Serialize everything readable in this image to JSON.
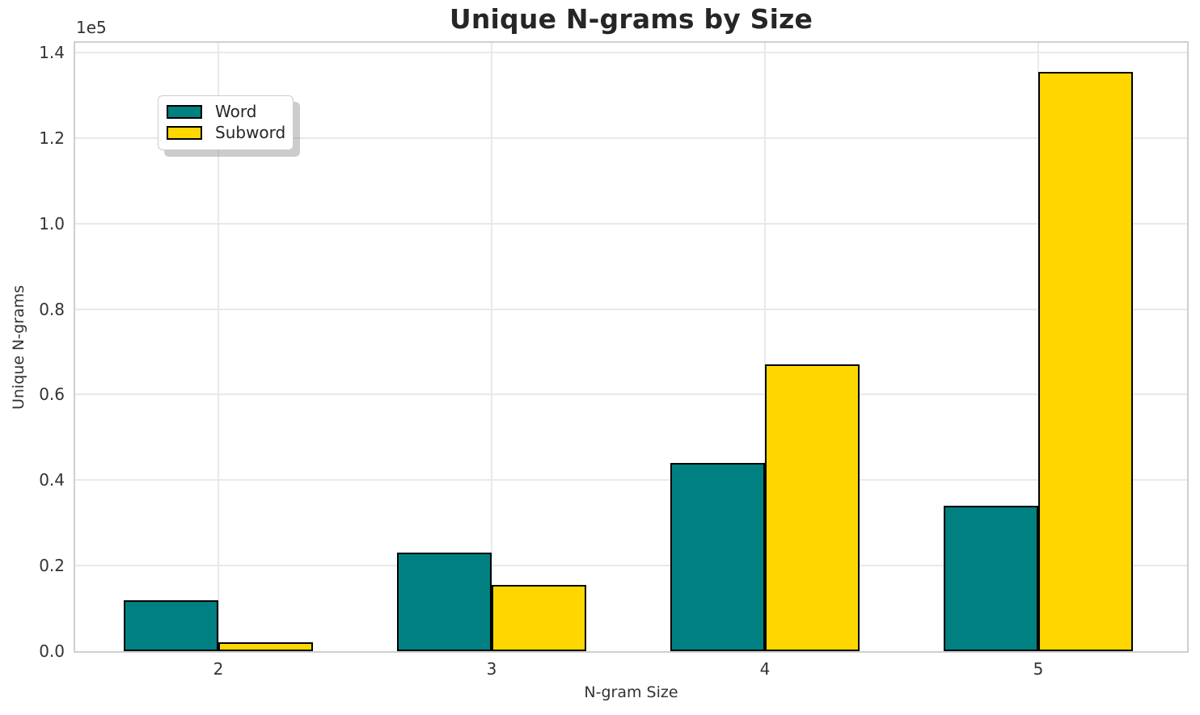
{
  "chart_data": {
    "type": "bar",
    "title": "Unique N-grams by Size",
    "xlabel": "N-gram Size",
    "ylabel": "Unique N-grams",
    "offset_text": "1e5",
    "categories": [
      "2",
      "3",
      "4",
      "5"
    ],
    "series": [
      {
        "name": "Word",
        "color": "#008080",
        "values": [
          12000,
          23000,
          44000,
          34000
        ]
      },
      {
        "name": "Subword",
        "color": "#FFD700",
        "values": [
          2000,
          15500,
          67000,
          135500
        ]
      }
    ],
    "bar_edge_color": "#000000",
    "y_tick_labels": [
      "0.0",
      "0.2",
      "0.4",
      "0.6",
      "0.8",
      "1.0",
      "1.2",
      "1.4"
    ],
    "y_tick_values": [
      0,
      20000,
      40000,
      60000,
      80000,
      100000,
      120000,
      140000
    ],
    "ylim": [
      0,
      142275
    ],
    "grid": true,
    "grid_color": "#e9e9e9",
    "legend_position": "upper left",
    "background_color": "#ffffff"
  }
}
